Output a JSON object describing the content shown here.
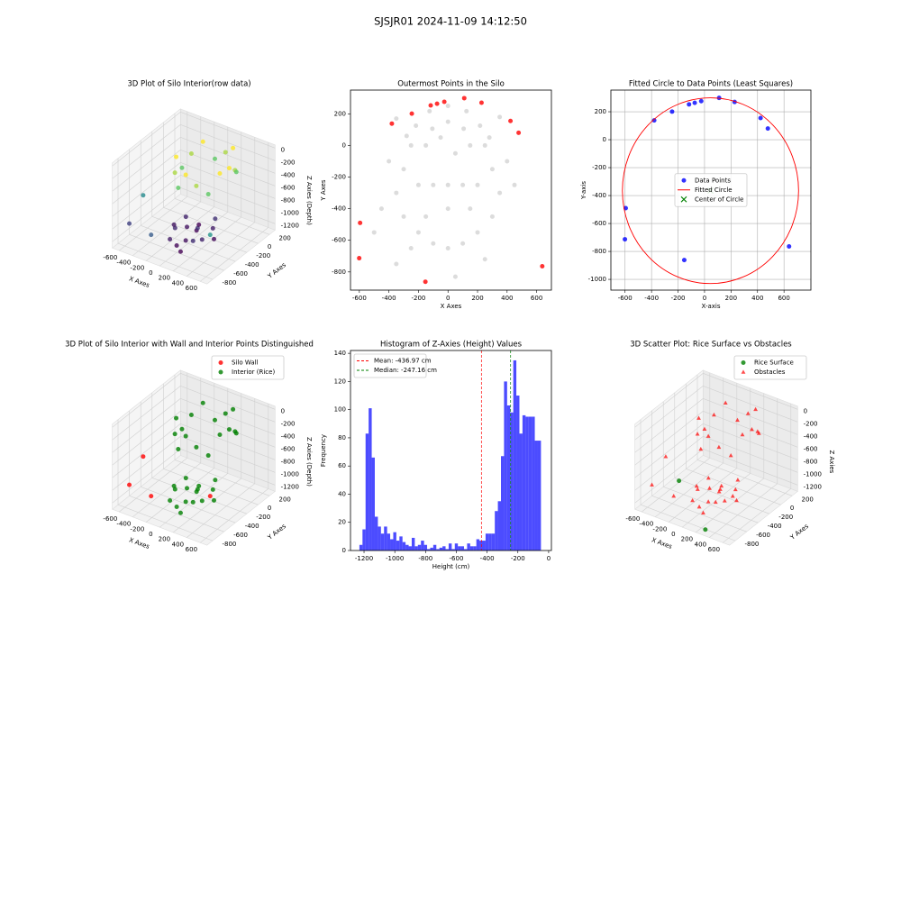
{
  "title": "SJSJR01 2024-11-09 14:12:50",
  "chart_data": [
    {
      "type": "scatter3d",
      "title": "3D Plot of Silo Interior(row data)",
      "xlabel": "X Axes",
      "ylabel": "Y Axes",
      "zlabel": "Z Axies (Depth)",
      "xlim": [
        -700,
        700
      ],
      "ylim": [
        -900,
        300
      ],
      "zlim": [
        -1300,
        50
      ],
      "xticks": [
        -600,
        -400,
        -200,
        0,
        200,
        400,
        600
      ],
      "yticks": [
        -800,
        -600,
        -400,
        -200,
        0,
        200
      ],
      "zticks": [
        -1200,
        -1000,
        -800,
        -600,
        -400,
        -200,
        0
      ],
      "series": [
        {
          "colormap": "viridis",
          "marker": "o",
          "x": [
            400,
            373,
            297,
            184,
            50,
            -84,
            -197,
            -273,
            -300,
            -273,
            -197,
            -84,
            50,
            184,
            297,
            373,
            -200,
            -100,
            0,
            100,
            200,
            300,
            -150,
            50,
            250,
            -50,
            150,
            -250,
            0,
            200,
            -100,
            100,
            -580,
            -600,
            630,
            -160
          ],
          "y": [
            -150,
            -16,
            97,
            173,
            200,
            173,
            97,
            -16,
            -150,
            -284,
            -397,
            -473,
            -500,
            -473,
            -397,
            -284,
            -200,
            -300,
            -250,
            -350,
            -200,
            -300,
            -450,
            -500,
            -450,
            -150,
            -100,
            -350,
            -600,
            -550,
            -600,
            -650,
            -500,
            -720,
            -760,
            -860
          ],
          "z": [
            -120,
            -260,
            -400,
            -120,
            -260,
            -400,
            -120,
            -260,
            -400,
            -120,
            -260,
            -400,
            -120,
            -260,
            -400,
            -120,
            -1100,
            -1150,
            -1200,
            -1050,
            -1120,
            -1180,
            -1080,
            -1160,
            -1100,
            -1200,
            -1060,
            -1140,
            -1190,
            -1070,
            -1130,
            -1210,
            -700,
            -1000,
            -650,
            -900
          ]
        }
      ]
    },
    {
      "type": "scatter",
      "title": "Outermost Points in the Silo",
      "xlabel": "X Axes",
      "ylabel": "Y Axes",
      "xlim": [
        -660,
        700
      ],
      "ylim": [
        -915,
        350
      ],
      "xticks": [
        -600,
        -400,
        -200,
        0,
        200,
        400,
        600
      ],
      "yticks": [
        -800,
        -600,
        -400,
        -200,
        0,
        200
      ],
      "grid": false,
      "series": [
        {
          "color": "#d3d3d3",
          "marker": "o",
          "x": [
            250,
            217,
            125,
            0,
            -125,
            -217,
            -250,
            150,
            106,
            0,
            -106,
            -150,
            -300,
            -350,
            -300,
            -200,
            -100,
            0,
            100,
            200,
            300,
            350,
            300,
            -200,
            -100,
            0,
            100,
            200,
            -450,
            -400,
            400,
            450,
            -500,
            -350,
            250,
            50,
            -250,
            -150,
            150,
            0,
            -50,
            50,
            280,
            -280,
            350,
            -350
          ],
          "y": [
            0,
            125,
            217,
            250,
            217,
            125,
            0,
            0,
            106,
            150,
            106,
            0,
            -150,
            -300,
            -450,
            -550,
            -620,
            -650,
            -620,
            -550,
            -450,
            -300,
            -150,
            -250,
            -250,
            -250,
            -250,
            -250,
            -400,
            -100,
            -100,
            -250,
            -550,
            -750,
            -720,
            -830,
            -650,
            -450,
            -400,
            -400,
            50,
            -50,
            50,
            60,
            180,
            170
          ]
        },
        {
          "color": "red",
          "marker": "o",
          "x": [
            -595,
            -601,
            -153,
            -380,
            -245,
            -117,
            -74,
            -25,
            110,
            227,
            423,
            478,
            638
          ],
          "y": [
            -490,
            -713,
            -862,
            138,
            201,
            253,
            264,
            276,
            299,
            270,
            155,
            80,
            -764
          ]
        }
      ]
    },
    {
      "type": "scatter",
      "title": "Fitted Circle to Data Points (Least Squares)",
      "xlabel": "X-axis",
      "ylabel": "Y-axis",
      "xlim": [
        -707,
        803
      ],
      "ylim": [
        -1077,
        355
      ],
      "xticks": [
        -600,
        -400,
        -200,
        0,
        200,
        400,
        600
      ],
      "yticks": [
        -1000,
        -800,
        -600,
        -400,
        -200,
        0,
        200
      ],
      "grid": true,
      "legend": "center",
      "series": [
        {
          "name": "Data Points",
          "color": "blue",
          "marker": "o",
          "x": [
            -595,
            -601,
            -153,
            -380,
            -245,
            -117,
            -74,
            -25,
            110,
            227,
            423,
            478,
            638
          ],
          "y": [
            -490,
            -713,
            -862,
            138,
            201,
            253,
            264,
            276,
            299,
            270,
            155,
            80,
            -764
          ]
        },
        {
          "name": "Fitted Circle",
          "color": "red",
          "kind": "circle",
          "center_x": 45,
          "center_y": -365,
          "radius": 665
        },
        {
          "name": "Center of Circle",
          "color": "green",
          "marker": "x",
          "x": [
            45
          ],
          "y": [
            -365
          ]
        }
      ]
    },
    {
      "type": "scatter3d",
      "title": "3D Plot of Silo Interior with Wall and Interior Points Distinguished",
      "xlabel": "X Axes",
      "ylabel": "Y Axes",
      "zlabel": "Z Axies (Depth)",
      "xlim": [
        -700,
        700
      ],
      "ylim": [
        -900,
        300
      ],
      "zlim": [
        -1300,
        50
      ],
      "xticks": [
        -600,
        -400,
        -200,
        0,
        200,
        400,
        600
      ],
      "yticks": [
        -800,
        -600,
        -400,
        -200,
        0,
        200
      ],
      "zticks": [
        -1200,
        -1000,
        -800,
        -600,
        -400,
        -200,
        0
      ],
      "legend": "upper right",
      "series": [
        {
          "name": "Silo Wall",
          "color": "red",
          "marker": "o",
          "x": [
            -580,
            -600,
            630,
            -160
          ],
          "y": [
            -500,
            -720,
            -760,
            -860
          ],
          "z": [
            -700,
            -1000,
            -650,
            -900
          ]
        },
        {
          "name": "Interior (Rice)",
          "color": "green",
          "marker": "o",
          "x": [
            400,
            373,
            297,
            184,
            50,
            -84,
            -197,
            -273,
            -300,
            -273,
            -197,
            -84,
            50,
            184,
            297,
            373,
            -200,
            -100,
            0,
            100,
            200,
            300,
            -150,
            50,
            250,
            -50,
            150,
            -250,
            0,
            200,
            -100,
            100
          ],
          "y": [
            -150,
            -16,
            97,
            173,
            200,
            173,
            97,
            -16,
            -150,
            -284,
            -397,
            -473,
            -500,
            -473,
            -397,
            -284,
            -200,
            -300,
            -250,
            -350,
            -200,
            -300,
            -450,
            -500,
            -450,
            -150,
            -100,
            -350,
            -600,
            -550,
            -600,
            -650
          ],
          "z": [
            -120,
            -260,
            -400,
            -120,
            -260,
            -400,
            -120,
            -260,
            -400,
            -120,
            -260,
            -400,
            -120,
            -260,
            -400,
            -120,
            -1100,
            -1150,
            -1200,
            -1050,
            -1120,
            -1180,
            -1080,
            -1160,
            -1100,
            -1200,
            -1060,
            -1140,
            -1190,
            -1070,
            -1130,
            -1210
          ]
        }
      ]
    },
    {
      "type": "histogram",
      "title": "Histogram of Z-Axies (Height) Values",
      "xlabel": "Height (cm)",
      "ylabel": "Frequency",
      "xlim": [
        -1288,
        18
      ],
      "ylim": [
        0,
        142
      ],
      "xticks": [
        -1200,
        -1000,
        -800,
        -600,
        -400,
        -200,
        0
      ],
      "yticks": [
        0,
        20,
        40,
        60,
        80,
        100,
        120,
        140
      ],
      "color": "blue",
      "alpha": 0.7,
      "legend": "upper left",
      "bins": [
        -1230,
        -1210,
        -1190,
        -1170,
        -1150,
        -1130,
        -1110,
        -1090,
        -1070,
        -1050,
        -1030,
        -1010,
        -990,
        -970,
        -950,
        -930,
        -910,
        -890,
        -870,
        -850,
        -830,
        -810,
        -790,
        -770,
        -750,
        -730,
        -710,
        -690,
        -670,
        -650,
        -630,
        -610,
        -590,
        -570,
        -550,
        -530,
        -510,
        -490,
        -470,
        -450,
        -430,
        -410,
        -390,
        -370,
        -350,
        -330,
        -310,
        -290,
        -270,
        -250,
        -230,
        -210,
        -190,
        -170,
        -150,
        -130,
        -110,
        -90,
        -70,
        -50
      ],
      "values": [
        4,
        15,
        83,
        101,
        66,
        24,
        17,
        12,
        17,
        12,
        8,
        13,
        7,
        10,
        6,
        4,
        3,
        9,
        3,
        4,
        7,
        4,
        1,
        2,
        4,
        1,
        2,
        3,
        1,
        5,
        1,
        5,
        3,
        3,
        1,
        5,
        3,
        3,
        8,
        7,
        7,
        12,
        12,
        12,
        28,
        35,
        67,
        120,
        103,
        98,
        135,
        110,
        83,
        96,
        95,
        95,
        95,
        78,
        78
      ],
      "vlines": [
        {
          "name": "Mean: -436.97 cm",
          "value": -436.97,
          "color": "red"
        },
        {
          "name": "Median: -247.16 cm",
          "value": -247.16,
          "color": "green"
        }
      ]
    },
    {
      "type": "scatter3d",
      "title": "3D Scatter Plot: Rice Surface vs Obstacles",
      "xlabel": "X Axes",
      "ylabel": "Y Axes",
      "zlabel": "Z Axies",
      "xlim": [
        -700,
        700
      ],
      "ylim": [
        -900,
        300
      ],
      "zlim": [
        -1300,
        50
      ],
      "xticks": [
        -600,
        -400,
        -200,
        0,
        200,
        400,
        600
      ],
      "yticks": [
        -800,
        -600,
        -400,
        -200,
        0,
        200
      ],
      "zticks": [
        -1200,
        -1000,
        -800,
        -600,
        -400,
        -200,
        0
      ],
      "legend": "upper right",
      "series": [
        {
          "name": "Rice Surface",
          "color": "green",
          "marker": "o",
          "x": [
            -300,
            300
          ],
          "y": [
            -600,
            -850
          ],
          "z": [
            -900,
            -1250
          ]
        },
        {
          "name": "Obstacles",
          "color": "red",
          "marker": "^",
          "x": [
            400,
            373,
            297,
            184,
            50,
            -84,
            -197,
            -273,
            -300,
            -273,
            -197,
            -84,
            50,
            184,
            297,
            373,
            -200,
            -100,
            0,
            100,
            200,
            300,
            -150,
            50,
            250,
            -50,
            150,
            -250,
            0,
            200,
            -100,
            100,
            -580,
            -600,
            630,
            -160
          ],
          "y": [
            -150,
            -16,
            97,
            173,
            200,
            173,
            97,
            -16,
            -150,
            -284,
            -397,
            -473,
            -500,
            -473,
            -397,
            -284,
            -200,
            -300,
            -250,
            -350,
            -200,
            -300,
            -450,
            -500,
            -450,
            -150,
            -100,
            -350,
            -600,
            -550,
            -600,
            -650,
            -500,
            -720,
            -760,
            -860
          ],
          "z": [
            -120,
            -260,
            -400,
            -120,
            -260,
            -400,
            -120,
            -260,
            -400,
            -120,
            -260,
            -400,
            -120,
            -260,
            -400,
            -120,
            -1100,
            -1150,
            -1200,
            -1050,
            -1120,
            -1180,
            -1080,
            -1160,
            -1100,
            -1200,
            -1060,
            -1140,
            -1190,
            -1070,
            -1130,
            -1210,
            -700,
            -1000,
            -650,
            -900
          ]
        }
      ]
    }
  ]
}
